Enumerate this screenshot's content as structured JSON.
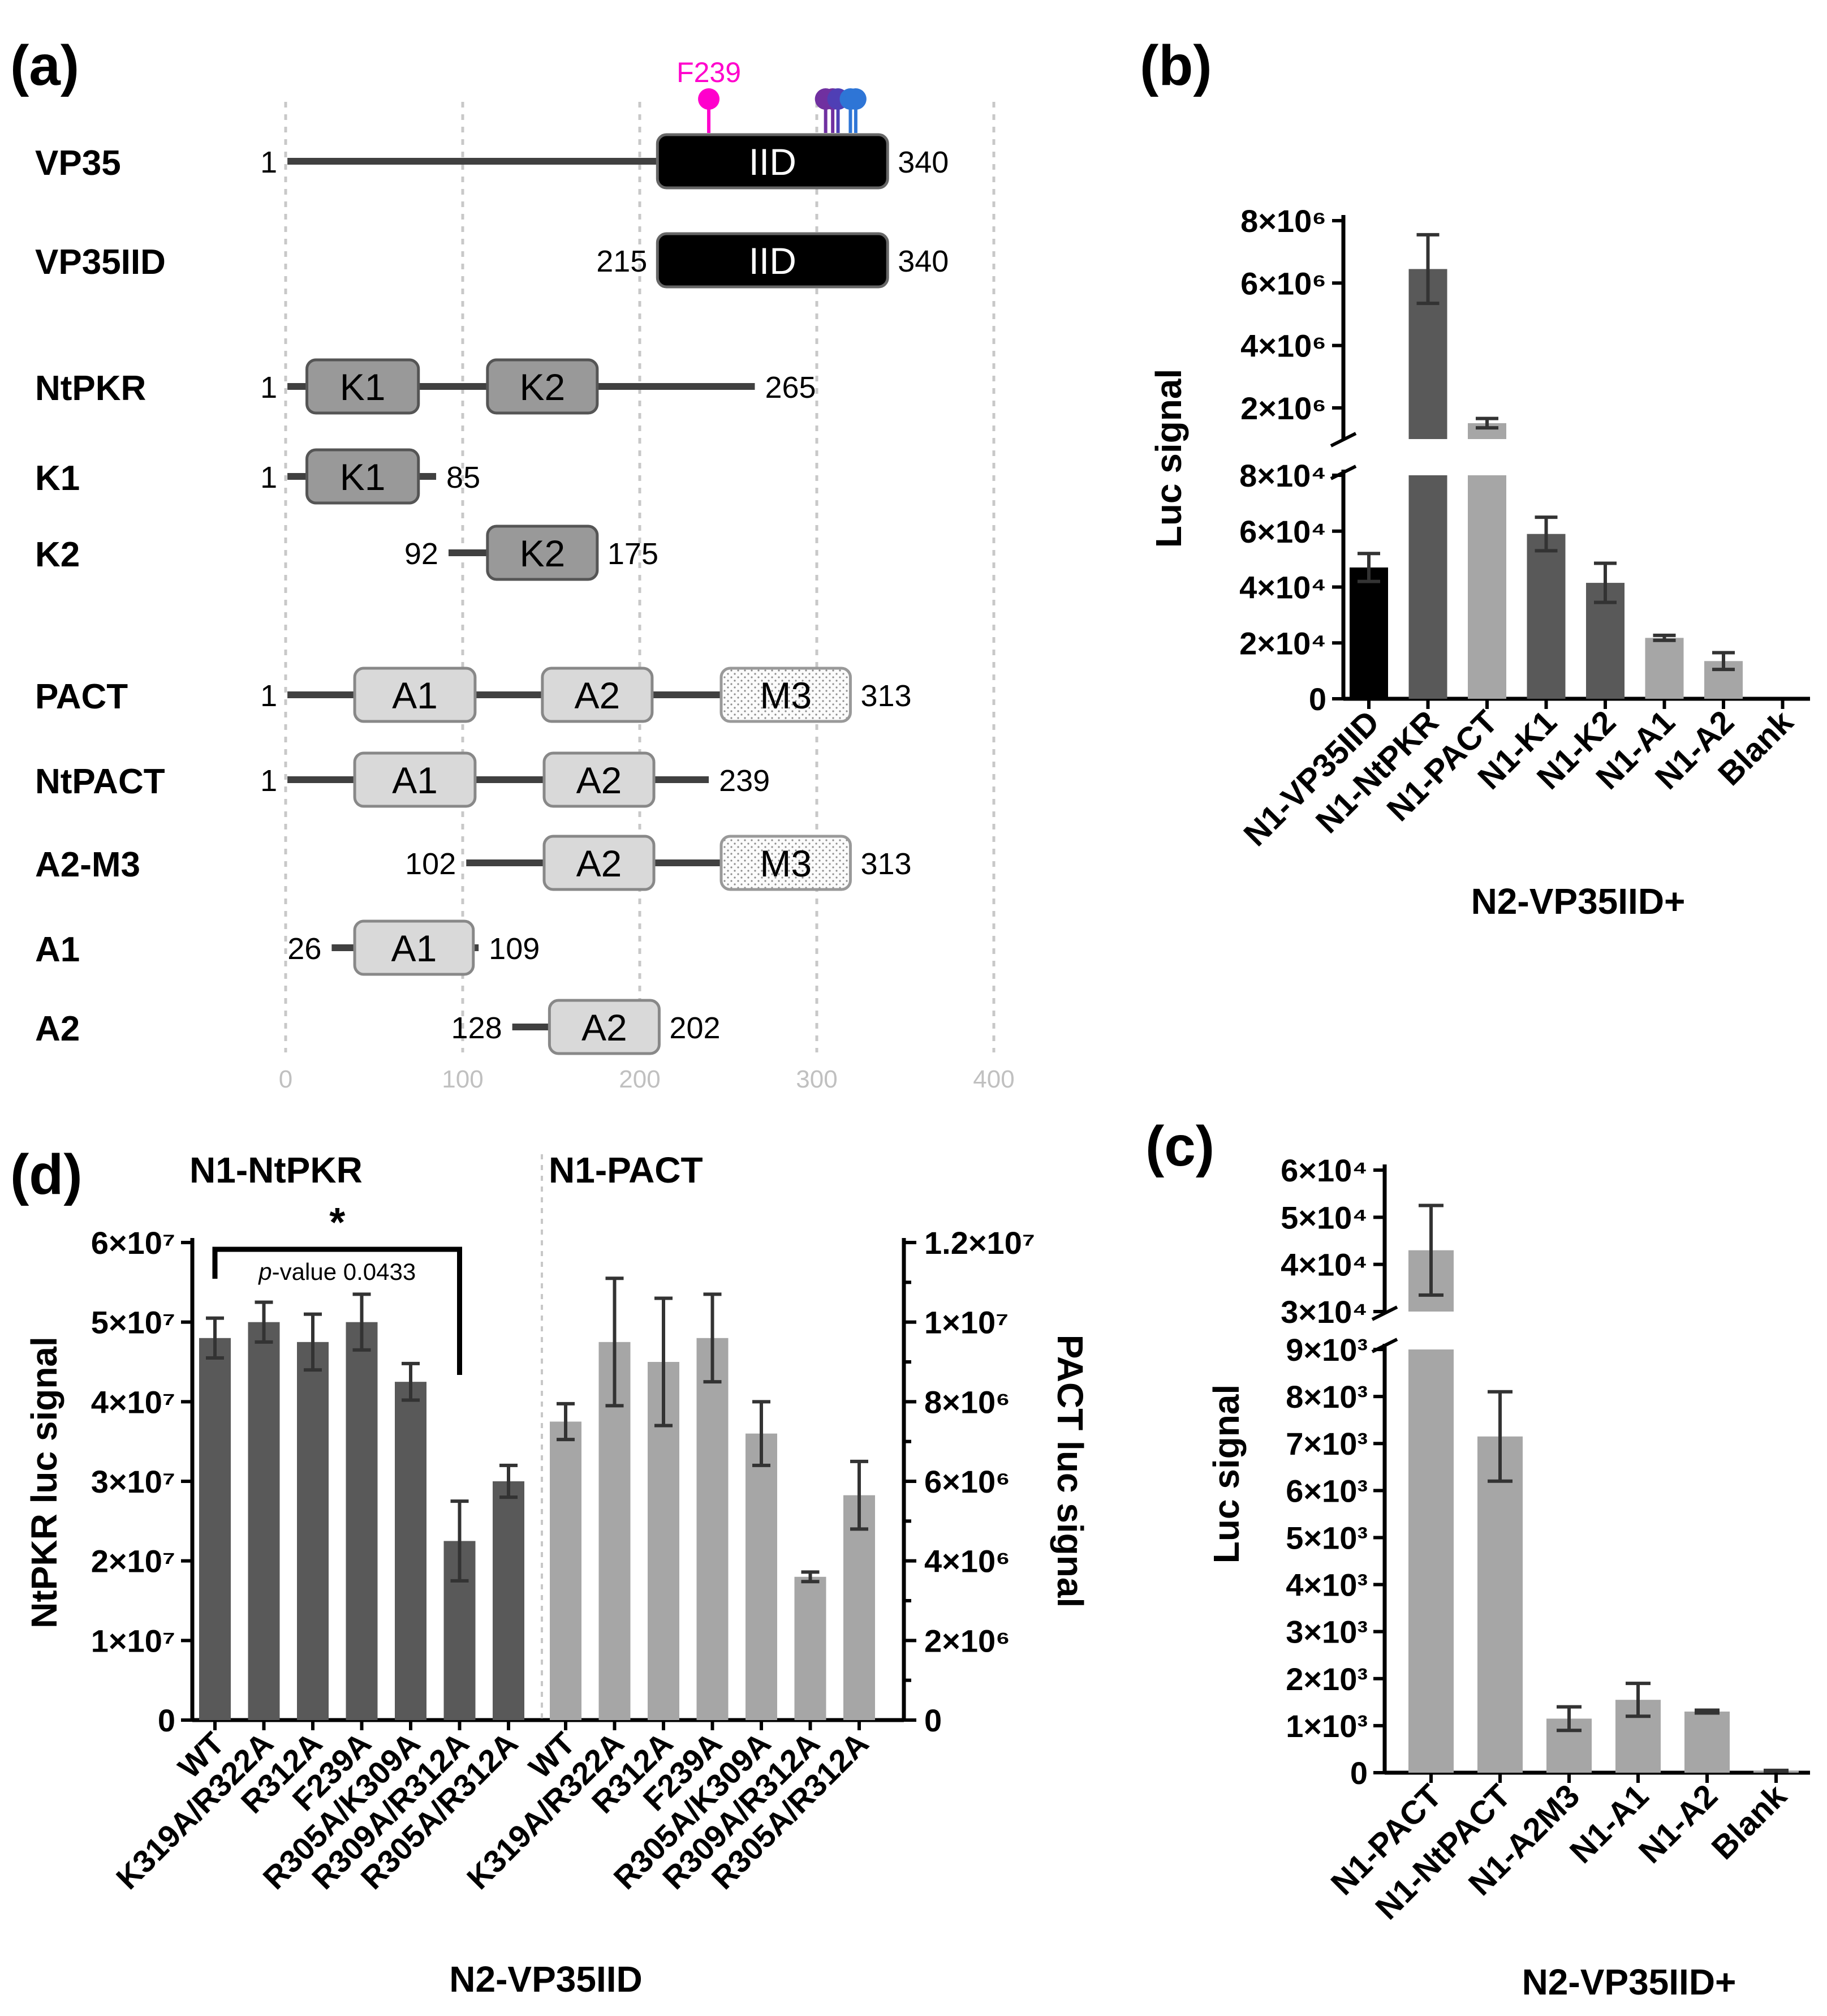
{
  "panel_labels": {
    "a": "(a)",
    "b": "(b)",
    "c": "(c)",
    "d": "(d)"
  },
  "colors": {
    "iid": "#000000",
    "kinase": "#999999",
    "dsrbd": "#d9d9d9",
    "line": "#404040",
    "magenta": "#ff00cc",
    "purple": "#7030a0",
    "blue": "#2e75d6",
    "bar_black": "#000000",
    "bar_dark": "#595959",
    "bar_light": "#a6a6a6"
  },
  "panel_a": {
    "axis_ticks": [
      "0",
      "100",
      "200",
      "300",
      "400"
    ],
    "pins": [
      {
        "pos": 239,
        "label": "F239",
        "color": "#ff00cc"
      },
      {
        "pos": 305,
        "label": "",
        "color": "#7030a0"
      },
      {
        "pos": 309,
        "label": "",
        "color": "#7030a0"
      },
      {
        "pos": 312,
        "label": "",
        "color": "#4f3fb5"
      },
      {
        "pos": 319,
        "label": "",
        "color": "#2e75d6"
      },
      {
        "pos": 322,
        "label": "",
        "color": "#2e75d6"
      }
    ],
    "constructs": [
      {
        "name": "VP35",
        "start": 1,
        "end": 340,
        "start_label": "1",
        "end_label": "340",
        "domains": [
          {
            "label": "IID",
            "start": 210,
            "end": 340,
            "type": "iid"
          }
        ]
      },
      {
        "name": "VP35IID",
        "start": 215,
        "end": 340,
        "start_label": "215",
        "end_label": "340",
        "domains": [
          {
            "label": "IID",
            "start": 210,
            "end": 340,
            "type": "iid"
          }
        ]
      },
      {
        "name": "NtPKR",
        "start": 1,
        "end": 265,
        "start_label": "1",
        "end_label": "265",
        "domains": [
          {
            "label": "K1",
            "start": 12,
            "end": 75,
            "type": "kinase"
          },
          {
            "label": "K2",
            "start": 114,
            "end": 176,
            "type": "kinase"
          }
        ]
      },
      {
        "name": "K1",
        "start": 1,
        "end": 85,
        "start_label": "1",
        "end_label": "85",
        "domains": [
          {
            "label": "K1",
            "start": 12,
            "end": 75,
            "type": "kinase"
          }
        ]
      },
      {
        "name": "K2",
        "start": 92,
        "end": 175,
        "start_label": "92",
        "end_label": "175",
        "domains": [
          {
            "label": "K2",
            "start": 114,
            "end": 176,
            "type": "kinase"
          }
        ]
      },
      {
        "name": "PACT",
        "start": 1,
        "end": 313,
        "start_label": "1",
        "end_label": "313",
        "domains": [
          {
            "label": "A1",
            "start": 39,
            "end": 107,
            "type": "dsrbd"
          },
          {
            "label": "A2",
            "start": 145,
            "end": 207,
            "type": "dsrbd"
          },
          {
            "label": "M3",
            "start": 246,
            "end": 319,
            "type": "m3"
          }
        ]
      },
      {
        "name": "NtPACT",
        "start": 1,
        "end": 239,
        "start_label": "1",
        "end_label": "239",
        "domains": [
          {
            "label": "A1",
            "start": 39,
            "end": 107,
            "type": "dsrbd"
          },
          {
            "label": "A2",
            "start": 146,
            "end": 208,
            "type": "dsrbd"
          }
        ]
      },
      {
        "name": "A2-M3",
        "start": 102,
        "end": 313,
        "start_label": "102",
        "end_label": "313",
        "domains": [
          {
            "label": "A2",
            "start": 146,
            "end": 208,
            "type": "dsrbd"
          },
          {
            "label": "M3",
            "start": 246,
            "end": 319,
            "type": "m3"
          }
        ]
      },
      {
        "name": "A1",
        "start": 26,
        "end": 109,
        "start_label": "26",
        "end_label": "109",
        "domains": [
          {
            "label": "A1",
            "start": 39,
            "end": 106,
            "type": "dsrbd"
          }
        ]
      },
      {
        "name": "A2",
        "start": 128,
        "end": 202,
        "start_label": "128",
        "end_label": "202",
        "domains": [
          {
            "label": "A2",
            "start": 149,
            "end": 211,
            "type": "dsrbd"
          }
        ]
      }
    ]
  },
  "chart_data": [
    {
      "panel": "b",
      "type": "bar",
      "xlabel": "N2-VP35IID+",
      "ylabel": "Luc signal",
      "broken_axis": true,
      "lower_range": [
        0,
        80000
      ],
      "upper_range": [
        1000000,
        8000000
      ],
      "lower_ticks": [
        "0",
        "2×10⁴",
        "4×10⁴",
        "6×10⁴",
        "8×10⁴"
      ],
      "upper_ticks": [
        "2×10⁶",
        "4×10⁶",
        "6×10⁶",
        "8×10⁶"
      ],
      "categories": [
        "N1-VP35IID",
        "N1-NtPKR",
        "N1-PACT",
        "N1-K1",
        "N1-K2",
        "N1-A1",
        "N1-A2",
        "Blank"
      ],
      "values": [
        47000,
        6450000,
        1510000,
        59000,
        41500,
        21800,
        13500,
        0
      ],
      "errors": [
        5000,
        1100000,
        150000,
        6000,
        7000,
        900,
        3000,
        0
      ],
      "colors": [
        "#000000",
        "#595959",
        "#a6a6a6",
        "#595959",
        "#595959",
        "#a6a6a6",
        "#a6a6a6",
        "#a6a6a6"
      ]
    },
    {
      "panel": "c",
      "type": "bar",
      "xlabel": "N2-VP35IID+",
      "ylabel": "Luc signal",
      "broken_axis": true,
      "lower_range": [
        0,
        9000
      ],
      "upper_range": [
        30000,
        60000
      ],
      "lower_ticks": [
        "0",
        "1×10³",
        "2×10³",
        "3×10³",
        "4×10³",
        "5×10³",
        "6×10³",
        "7×10³",
        "8×10³",
        "9×10³"
      ],
      "upper_ticks": [
        "3×10⁴",
        "4×10⁴",
        "5×10⁴",
        "6×10⁴"
      ],
      "categories": [
        "N1-PACT",
        "N1-NtPACT",
        "N1-A2M3",
        "N1-A1",
        "N1-A2",
        "Blank"
      ],
      "values": [
        43000,
        7150,
        1150,
        1550,
        1300,
        40
      ],
      "errors": [
        9500,
        950,
        250,
        350,
        30,
        10
      ],
      "colors": [
        "#a6a6a6",
        "#a6a6a6",
        "#a6a6a6",
        "#a6a6a6",
        "#a6a6a6",
        "#a6a6a6"
      ]
    },
    {
      "panel": "d",
      "type": "bar",
      "xlabel": "N2-VP35IID",
      "ylabel_left": "NtPKR luc signal",
      "ylabel_right": "PACT luc signal",
      "left_ticks": [
        "0",
        "1×10⁷",
        "2×10⁷",
        "3×10⁷",
        "4×10⁷",
        "5×10⁷",
        "6×10⁷"
      ],
      "right_ticks": [
        "0",
        "2×10⁶",
        "4×10⁶",
        "6×10⁶",
        "8×10⁶",
        "1×10⁷",
        "1.2×10⁷"
      ],
      "left_range": [
        0,
        60000000
      ],
      "right_range": [
        0,
        12000000
      ],
      "categories": [
        "WT",
        "K319A/R322A",
        "R312A",
        "F239A",
        "R305A/K309A",
        "R309A/R312A",
        "R305A/R312A"
      ],
      "series": [
        {
          "name": "N1-NtPKR",
          "axis": "left",
          "color": "#595959",
          "values": [
            48000000,
            50000000,
            47500000,
            50000000,
            42500000,
            22500000,
            30000000
          ],
          "errors": [
            2500000,
            2500000,
            3500000,
            3500000,
            2300000,
            5000000,
            2000000
          ]
        },
        {
          "name": "N1-PACT",
          "axis": "right",
          "color": "#a6a6a6",
          "values": [
            7500000,
            9500000,
            9000000,
            9600000,
            7200000,
            3600000,
            5650000
          ],
          "errors": [
            450000,
            1600000,
            1600000,
            1100000,
            800000,
            120000,
            850000
          ]
        }
      ],
      "significance": {
        "star": "*",
        "p_prefix": "p",
        "p_text": "-value 0.0433"
      }
    }
  ]
}
